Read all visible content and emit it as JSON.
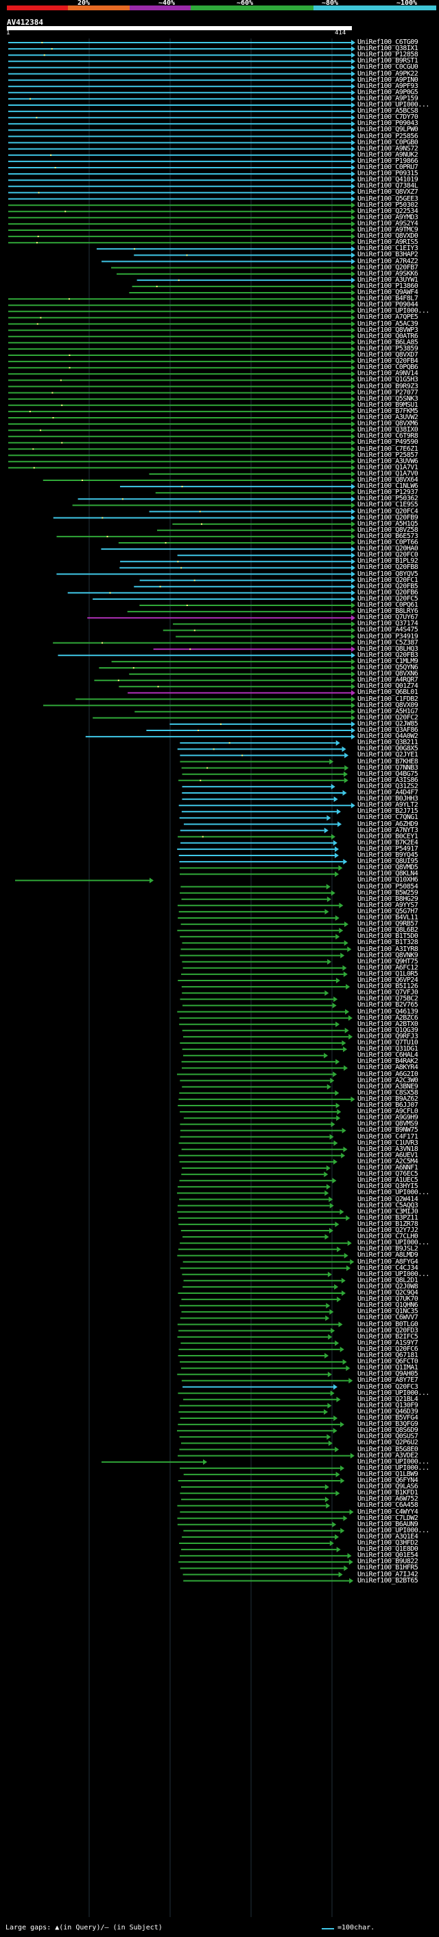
{
  "legend": {
    "segments": [
      "#e2191c",
      "#e66a24",
      "#9a2ba9",
      "#2fa83a",
      "#2fa83a",
      "#3fc5d6",
      "#3fc5d6"
    ],
    "labels": [
      "20%",
      "~40%",
      "~60%",
      "~80%",
      "~100%"
    ]
  },
  "query": {
    "id": "AV412384",
    "start": "1",
    "end": "414"
  },
  "colors": {
    "cyan": "#40c8e8",
    "green": "#30a838",
    "magenta": "#b030b8",
    "gap_dot": "#ffff80",
    "grid": "#22303a"
  },
  "footer": {
    "gap_text": "Large gaps: ▲(in Query)/— (in Subject)",
    "scale_text": "=100char."
  },
  "hits": [
    {
      "label": "UniRef100_C6TG09",
      "color": "cyan"
    },
    {
      "label": "UniRef100_Q38IX1",
      "color": "cyan"
    },
    {
      "label": "UniRef100_P12858",
      "color": "cyan"
    },
    {
      "label": "UniRef100_B9RST1",
      "color": "cyan"
    },
    {
      "label": "UniRef100_C0CGU0",
      "color": "cyan"
    },
    {
      "label": "UniRef100_A9PK22",
      "color": "cyan"
    },
    {
      "label": "UniRef100_A9PIN0",
      "color": "cyan"
    },
    {
      "label": "UniRef100_A9PF93",
      "color": "cyan"
    },
    {
      "label": "UniRef100_A9P0G5",
      "color": "cyan"
    },
    {
      "label": "UniRef100_A9P159",
      "color": "cyan"
    },
    {
      "label": "UniRef100_UPI000...",
      "color": "cyan"
    },
    {
      "label": "UniRef100_A5BCS8",
      "color": "cyan"
    },
    {
      "label": "UniRef100_C7DY70",
      "color": "cyan"
    },
    {
      "label": "UniRef100_P09043",
      "color": "cyan"
    },
    {
      "label": "UniRef100_Q9LPW0",
      "color": "cyan"
    },
    {
      "label": "UniRef100_P25856",
      "color": "cyan"
    },
    {
      "label": "UniRef100_C0PGB0",
      "color": "cyan"
    },
    {
      "label": "UniRef100_A9NS72",
      "color": "cyan"
    },
    {
      "label": "UniRef100_A9NUK2",
      "color": "cyan"
    },
    {
      "label": "UniRef100_P19866",
      "color": "cyan"
    },
    {
      "label": "UniRef100_C0PRU7",
      "color": "cyan"
    },
    {
      "label": "UniRef100_P09315",
      "color": "cyan"
    },
    {
      "label": "UniRef100_Q41019",
      "color": "cyan"
    },
    {
      "label": "UniRef100_Q7384L",
      "color": "cyan"
    },
    {
      "label": "UniRef100_Q8VXZ7",
      "color": "cyan"
    },
    {
      "label": "UniRef100_Q5GEE3",
      "color": "cyan"
    },
    {
      "label": "UniRef100_P50302",
      "color": "green"
    },
    {
      "label": "UniRef100_Q22534",
      "color": "green"
    },
    {
      "label": "UniRef100_A9YMD3",
      "color": "green"
    },
    {
      "label": "UniRef100_A9S2Y4",
      "color": "green"
    },
    {
      "label": "UniRef100_A9TMC9",
      "color": "green"
    },
    {
      "label": "UniRef100_Q8VXD0",
      "color": "green"
    },
    {
      "label": "UniRef100_A9RIS5",
      "color": "green"
    },
    {
      "label": "UniRef100_C1EIY3",
      "color": "cyan"
    },
    {
      "label": "UniRef100_B3HAP2",
      "color": "cyan"
    },
    {
      "label": "UniRef100_A7R4Z2",
      "color": "cyan"
    },
    {
      "label": "UniRef100_Q20FB7",
      "color": "green"
    },
    {
      "label": "UniRef100_A9SKK6",
      "color": "green"
    },
    {
      "label": "UniRef100_A3UYW1",
      "color": "cyan"
    },
    {
      "label": "UniRef100_P13860",
      "color": "green"
    },
    {
      "label": "UniRef100_Q9AWF4",
      "color": "green"
    },
    {
      "label": "UniRef100_B4F8L7",
      "color": "green"
    },
    {
      "label": "UniRef100_P09044",
      "color": "green"
    },
    {
      "label": "UniRef100_UPI000...",
      "color": "green"
    },
    {
      "label": "UniRef100_A7QPE5",
      "color": "green"
    },
    {
      "label": "UniRef100_A5AC39",
      "color": "green"
    },
    {
      "label": "UniRef100_Q8VWP3",
      "color": "green"
    },
    {
      "label": "UniRef100_Q0ATR6",
      "color": "green"
    },
    {
      "label": "UniRef100_B6LA85",
      "color": "green"
    },
    {
      "label": "UniRef100_P53859",
      "color": "green"
    },
    {
      "label": "UniRef100_Q8VXD7",
      "color": "green"
    },
    {
      "label": "UniRef100_Q20FB4",
      "color": "green"
    },
    {
      "label": "UniRef100_C0PQB6",
      "color": "green"
    },
    {
      "label": "UniRef100_A9NV14",
      "color": "green"
    },
    {
      "label": "UniRef100_Q1G5H3",
      "color": "green"
    },
    {
      "label": "UniRef100_B9R9Z3",
      "color": "green"
    },
    {
      "label": "UniRef100_P27077",
      "color": "green"
    },
    {
      "label": "UniRef100_Q5SNK3",
      "color": "green"
    },
    {
      "label": "UniRef100_B9MSU1",
      "color": "green"
    },
    {
      "label": "UniRef100_B7FKM5",
      "color": "green"
    },
    {
      "label": "UniRef100_A3UVW2",
      "color": "green"
    },
    {
      "label": "UniRef100_Q8VXM6",
      "color": "green"
    },
    {
      "label": "UniRef100_Q38IX0",
      "color": "green"
    },
    {
      "label": "UniRef100_C6T9R8",
      "color": "green"
    },
    {
      "label": "UniRef100_P49590",
      "color": "green"
    },
    {
      "label": "UniRef100_C7E6Z1",
      "color": "green"
    },
    {
      "label": "UniRef100_P25857",
      "color": "green"
    },
    {
      "label": "UniRef100_A3UVW6",
      "color": "green"
    },
    {
      "label": "UniRef100_Q1A7V1",
      "color": "green"
    },
    {
      "label": "UniRef100_Q1A7V0",
      "color": "green"
    },
    {
      "label": "UniRef100_Q8VX64",
      "color": "green"
    },
    {
      "label": "UniRef100_C1NLW6",
      "color": "cyan"
    },
    {
      "label": "UniRef100_P12937",
      "color": "green"
    },
    {
      "label": "UniRef100_P50362",
      "color": "cyan"
    },
    {
      "label": "UniRef100_C1E9S5",
      "color": "green"
    },
    {
      "label": "UniRef100_Q20FC4",
      "color": "cyan"
    },
    {
      "label": "UniRef100_Q20FB9",
      "color": "cyan"
    },
    {
      "label": "UniRef100_A5H1Q5",
      "color": "green"
    },
    {
      "label": "UniRef100_Q8VZ58",
      "color": "green"
    },
    {
      "label": "UniRef100_B6E573",
      "color": "green"
    },
    {
      "label": "UniRef100_C0PT66",
      "color": "green"
    },
    {
      "label": "UniRef100_Q20HA0",
      "color": "cyan"
    },
    {
      "label": "UniRef100_Q20FC0",
      "color": "cyan"
    },
    {
      "label": "UniRef100_B1PL92",
      "color": "cyan"
    },
    {
      "label": "UniRef100_Q20FB8",
      "color": "cyan"
    },
    {
      "label": "UniRef100_Q8YQV5",
      "color": "cyan"
    },
    {
      "label": "UniRef100_Q20FC1",
      "color": "cyan"
    },
    {
      "label": "UniRef100_Q20FB5",
      "color": "cyan"
    },
    {
      "label": "UniRef100_Q20FB6",
      "color": "cyan"
    },
    {
      "label": "UniRef100_Q20FC5",
      "color": "cyan"
    },
    {
      "label": "UniRef100_C0PQ61",
      "color": "green"
    },
    {
      "label": "UniRef100_B8LRY6",
      "color": "green"
    },
    {
      "label": "UniRef100_Q7UY67",
      "color": "magenta"
    },
    {
      "label": "UniRef100_Q37174",
      "color": "green"
    },
    {
      "label": "UniRef100_A4S475",
      "color": "green"
    },
    {
      "label": "UniRef100_P34919",
      "color": "green"
    },
    {
      "label": "UniRef100_C5Z387",
      "color": "green"
    },
    {
      "label": "UniRef100_Q8LHQ3",
      "color": "magenta"
    },
    {
      "label": "UniRef100_Q20FB3",
      "color": "cyan"
    },
    {
      "label": "UniRef100_C1MLM9",
      "color": "green"
    },
    {
      "label": "UniRef100_Q5QYN6",
      "color": "green"
    },
    {
      "label": "UniRef100_Q8VXN6",
      "color": "green"
    },
    {
      "label": "UniRef100_A4RQR7",
      "color": "green"
    },
    {
      "label": "UniRef100_Q01Z74",
      "color": "green"
    },
    {
      "label": "UniRef100_Q6BL01",
      "color": "magenta"
    },
    {
      "label": "UniRef100_C1FDB2",
      "color": "green"
    },
    {
      "label": "UniRef100_Q8VX09",
      "color": "green"
    },
    {
      "label": "UniRef100_A5H1G7",
      "color": "green"
    },
    {
      "label": "UniRef100_Q20FC2",
      "color": "green"
    },
    {
      "label": "UniRef100_Q2JW85",
      "color": "cyan"
    },
    {
      "label": "UniRef100_Q3AF86",
      "color": "cyan"
    },
    {
      "label": "UniRef100_Q4A0W2",
      "color": "cyan"
    },
    {
      "label": "UniRef100_Q3B211",
      "color": "cyan"
    },
    {
      "label": "UniRef100_Q0G8X5",
      "color": "cyan"
    },
    {
      "label": "UniRef100_Q2JYE1",
      "color": "cyan"
    },
    {
      "label": "UniRef100_B7KHE8",
      "color": "green"
    },
    {
      "label": "UniRef100_Q7NNB3",
      "color": "green"
    },
    {
      "label": "UniRef100_Q4BG75",
      "color": "green"
    },
    {
      "label": "UniRef100_A3IS86",
      "color": "green"
    },
    {
      "label": "UniRef100_Q31ZS2",
      "color": "cyan"
    },
    {
      "label": "UniRef100_A4D4F7",
      "color": "cyan"
    },
    {
      "label": "UniRef100_B0JHH3",
      "color": "cyan"
    },
    {
      "label": "UniRef100_A9YLT2",
      "color": "cyan"
    },
    {
      "label": "UniRef100_B2J715",
      "color": "cyan"
    },
    {
      "label": "UniRef100_C7QNG1",
      "color": "cyan"
    },
    {
      "label": "UniRef100_A6ZHD9",
      "color": "cyan"
    },
    {
      "label": "UniRef100_A7NYT3",
      "color": "cyan"
    },
    {
      "label": "UniRef100_B0CEY1",
      "color": "green"
    },
    {
      "label": "UniRef100_B7K2E4",
      "color": "cyan"
    },
    {
      "label": "UniRef100_P54917",
      "color": "cyan"
    },
    {
      "label": "UniRef100_B9YQ45",
      "color": "cyan"
    },
    {
      "label": "UniRef100_Q8UI95",
      "color": "cyan"
    },
    {
      "label": "UniRef100_Q8VMD5",
      "color": "green"
    },
    {
      "label": "UniRef100_Q8KLN4",
      "color": "green"
    },
    {
      "label": "UniRef100_Q10XH6",
      "color": "green"
    },
    {
      "label": "UniRef100_P50854",
      "color": "green"
    },
    {
      "label": "UniRef100_B5W259",
      "color": "green"
    },
    {
      "label": "UniRef100_B8HG29",
      "color": "green"
    },
    {
      "label": "UniRef100_A9YYS7",
      "color": "green"
    },
    {
      "label": "UniRef100_Q5G7H7",
      "color": "green"
    },
    {
      "label": "UniRef100_B4VL11",
      "color": "green"
    },
    {
      "label": "UniRef100_Q9RB57",
      "color": "green"
    },
    {
      "label": "UniRef100_Q8L6B2",
      "color": "green"
    },
    {
      "label": "UniRef100_B1T5D0",
      "color": "green"
    },
    {
      "label": "UniRef100_B1T328",
      "color": "green"
    },
    {
      "label": "UniRef100_A3IYR8",
      "color": "green"
    },
    {
      "label": "UniRef100_Q8VNK9",
      "color": "green"
    },
    {
      "label": "UniRef100_Q9HT75",
      "color": "green"
    },
    {
      "label": "UniRef100_A6FC12",
      "color": "green"
    },
    {
      "label": "UniRef100_Q1L0R5",
      "color": "green"
    },
    {
      "label": "UniRef100_Q6VP24",
      "color": "green"
    },
    {
      "label": "UniRef100_B5I126",
      "color": "green"
    },
    {
      "label": "UniRef100_Q7VFJ0",
      "color": "green"
    },
    {
      "label": "UniRef100_Q75BC2",
      "color": "green"
    },
    {
      "label": "UniRef100_B2V765",
      "color": "green"
    },
    {
      "label": "UniRef100_Q46139",
      "color": "green"
    },
    {
      "label": "UniRef100_A2BZC6",
      "color": "green"
    },
    {
      "label": "UniRef100_A2BTX0",
      "color": "green"
    },
    {
      "label": "UniRef100_Q1QG39",
      "color": "green"
    },
    {
      "label": "UniRef100_Q9RFJ3",
      "color": "green"
    },
    {
      "label": "UniRef100_Q7TU10",
      "color": "green"
    },
    {
      "label": "UniRef100_Q31DG1",
      "color": "green"
    },
    {
      "label": "UniRef100_C6HAL4",
      "color": "green"
    },
    {
      "label": "UniRef100_B4RAK2",
      "color": "green"
    },
    {
      "label": "UniRef100_A8KYR4",
      "color": "green"
    },
    {
      "label": "UniRef100_A6G2I0",
      "color": "green"
    },
    {
      "label": "UniRef100_A2C3W0",
      "color": "green"
    },
    {
      "label": "UniRef100_A3BNE9",
      "color": "green"
    },
    {
      "label": "UniRef100_C8SX58",
      "color": "green"
    },
    {
      "label": "UniRef100_B9AZ62",
      "color": "green"
    },
    {
      "label": "UniRef100_B6JJ07",
      "color": "green"
    },
    {
      "label": "UniRef100_A9CFL0",
      "color": "green"
    },
    {
      "label": "UniRef100_A9G9H9",
      "color": "green"
    },
    {
      "label": "UniRef100_Q8VMS9",
      "color": "green"
    },
    {
      "label": "UniRef100_B9NW75",
      "color": "green"
    },
    {
      "label": "UniRef100_C4F171",
      "color": "green"
    },
    {
      "label": "UniRef100_C1UVR3",
      "color": "green"
    },
    {
      "label": "UniRef100_A3VN18",
      "color": "green"
    },
    {
      "label": "UniRef100_A6UEV1",
      "color": "green"
    },
    {
      "label": "UniRef100_A2C5M4",
      "color": "green"
    },
    {
      "label": "UniRef100_A6NNF1",
      "color": "green"
    },
    {
      "label": "UniRef100_Q76EC5",
      "color": "green"
    },
    {
      "label": "UniRef100_A1UEC5",
      "color": "green"
    },
    {
      "label": "UniRef100_Q3HYI5",
      "color": "green"
    },
    {
      "label": "UniRef100_UPI000...",
      "color": "green"
    },
    {
      "label": "UniRef100_Q2W414",
      "color": "green"
    },
    {
      "label": "UniRef100_C5AQQ3",
      "color": "green"
    },
    {
      "label": "UniRef100_C3MIJ0",
      "color": "green"
    },
    {
      "label": "UniRef100_B3PZ11",
      "color": "green"
    },
    {
      "label": "UniRef100_B1ZR78",
      "color": "green"
    },
    {
      "label": "UniRef100_Q2Y7J2",
      "color": "green"
    },
    {
      "label": "UniRef100_C7CLH0",
      "color": "green"
    },
    {
      "label": "UniRef100_UPI000...",
      "color": "green"
    },
    {
      "label": "UniRef100_B9JSL2",
      "color": "green"
    },
    {
      "label": "UniRef100_A8LMD9",
      "color": "green"
    },
    {
      "label": "UniRef100_A8FYG4",
      "color": "green"
    },
    {
      "label": "UniRef100_C4CJ34",
      "color": "green"
    },
    {
      "label": "UniRef100_UPI000...",
      "color": "green"
    },
    {
      "label": "UniRef100_Q8L2D1",
      "color": "green"
    },
    {
      "label": "UniRef100_Q2J0W8",
      "color": "green"
    },
    {
      "label": "UniRef100_Q2C9Q4",
      "color": "green"
    },
    {
      "label": "UniRef100_Q7UK70",
      "color": "green"
    },
    {
      "label": "UniRef100_Q1QHN6",
      "color": "green"
    },
    {
      "label": "UniRef100_Q1NC35",
      "color": "green"
    },
    {
      "label": "UniRef100_C6WVV7",
      "color": "green"
    },
    {
      "label": "UniRef100_B0TLG0",
      "color": "green"
    },
    {
      "label": "UniRef100_Q20FD3",
      "color": "green"
    },
    {
      "label": "UniRef100_B2IFC5",
      "color": "green"
    },
    {
      "label": "UniRef100_A1S9Y7",
      "color": "green"
    },
    {
      "label": "UniRef100_Q20FC6",
      "color": "green"
    },
    {
      "label": "UniRef100_Q67181",
      "color": "green"
    },
    {
      "label": "UniRef100_Q6FCT0",
      "color": "green"
    },
    {
      "label": "UniRef100_Q1IMA1",
      "color": "green"
    },
    {
      "label": "UniRef100_Q9AH05",
      "color": "green"
    },
    {
      "label": "UniRef100_A8Y7E7",
      "color": "green"
    },
    {
      "label": "UniRef100_Q20FC3",
      "color": "cyan"
    },
    {
      "label": "UniRef100_UPI000...",
      "color": "green"
    },
    {
      "label": "UniRef100_Q21BL4",
      "color": "green"
    },
    {
      "label": "UniRef100_Q130F9",
      "color": "green"
    },
    {
      "label": "UniRef100_Q46D39",
      "color": "green"
    },
    {
      "label": "UniRef100_B5VFG4",
      "color": "green"
    },
    {
      "label": "UniRef100_B3QFG9",
      "color": "green"
    },
    {
      "label": "UniRef100_Q8S6D9",
      "color": "green"
    },
    {
      "label": "UniRef100_Q0SUS7",
      "color": "green"
    },
    {
      "label": "UniRef100_Q2P6U2",
      "color": "green"
    },
    {
      "label": "UniRef100_B5G8E0",
      "color": "green"
    },
    {
      "label": "UniRef100_A3VDE2",
      "color": "green"
    },
    {
      "label": "UniRef100_UPI000...",
      "color": "green"
    },
    {
      "label": "UniRef100_UPI000...",
      "color": "green"
    },
    {
      "label": "UniRef100_Q1LBW9",
      "color": "green"
    },
    {
      "label": "UniRef100_Q6FYN4",
      "color": "green"
    },
    {
      "label": "UniRef100_Q9LAS6",
      "color": "green"
    },
    {
      "label": "UniRef100_B1KFD1",
      "color": "green"
    },
    {
      "label": "UniRef100_A6W752",
      "color": "green"
    },
    {
      "label": "UniRef100_C6A458",
      "color": "green"
    },
    {
      "label": "UniRef100_C4WYY4",
      "color": "green"
    },
    {
      "label": "UniRef100_C7LDW2",
      "color": "green"
    },
    {
      "label": "UniRef100_B6AUN9",
      "color": "green"
    },
    {
      "label": "UniRef100_UPI000...",
      "color": "green"
    },
    {
      "label": "UniRef100_A3Q1E4",
      "color": "green"
    },
    {
      "label": "UniRef100_Q3HFD2",
      "color": "green"
    },
    {
      "label": "UniRef100_Q1E8D0",
      "color": "green"
    },
    {
      "label": "UniRef100_Q01E54",
      "color": "green"
    },
    {
      "label": "UniRef100_B9U822",
      "color": "green"
    },
    {
      "label": "UniRef100_B1HFR5",
      "color": "green"
    },
    {
      "label": "UniRef100_A7IJ42",
      "color": "green"
    },
    {
      "label": "UniRef100_B2BT65",
      "color": "green"
    }
  ]
}
